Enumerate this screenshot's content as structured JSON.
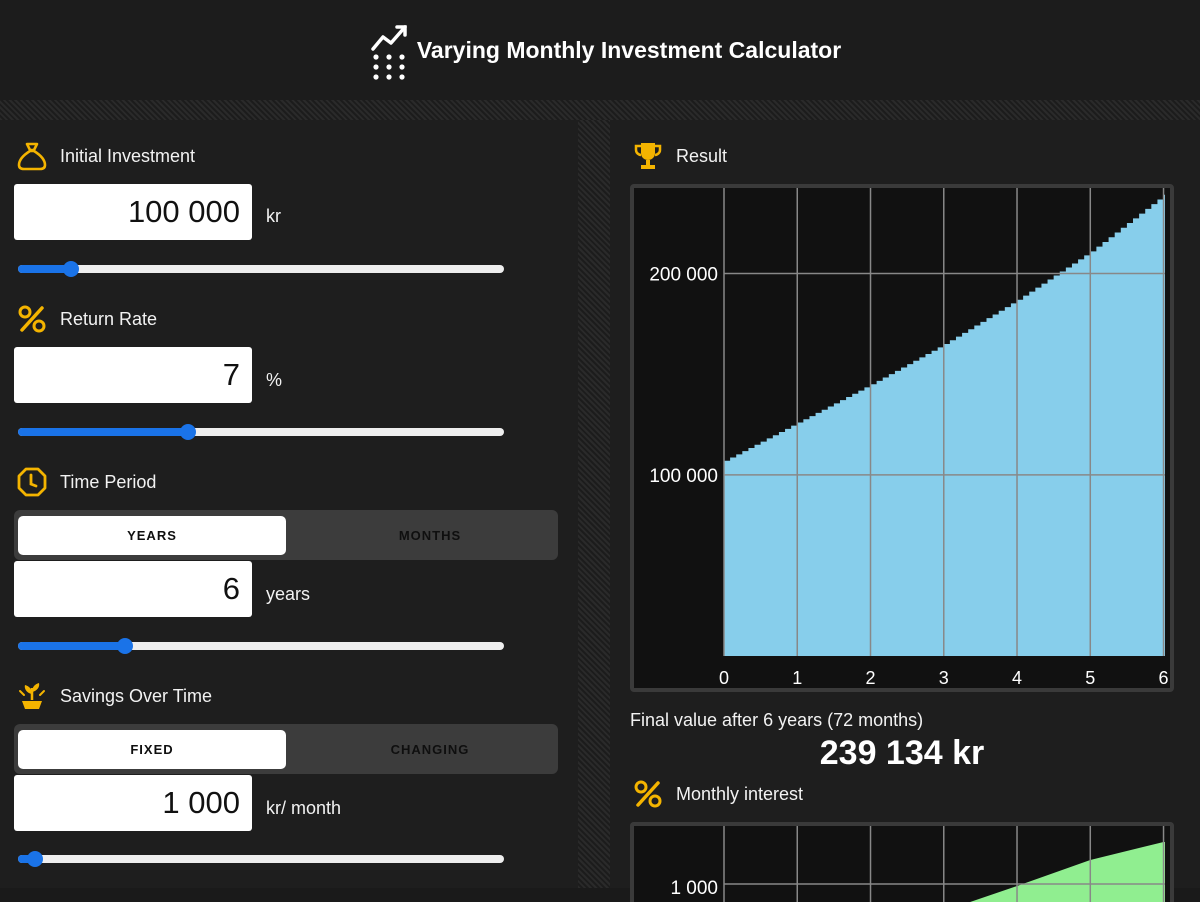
{
  "header": {
    "title": "Varying Monthly Investment Calculator",
    "logo_icon": "chart-dots-logo-icon"
  },
  "accent_color": "#f4b400",
  "slider_color": "#1a73e8",
  "initial_investment": {
    "label": "Initial Investment",
    "value": "100 000",
    "unit": "kr",
    "slider_level": 0.11,
    "icon": "money-bag-icon"
  },
  "return_rate": {
    "label": "Return Rate",
    "value": "7",
    "unit": "%",
    "slider_level": 0.35,
    "icon": "percent-icon"
  },
  "time_period": {
    "label": "Time Period",
    "icon": "clock-icon",
    "toggle": {
      "selected": "YEARS",
      "options": [
        "YEARS",
        "MONTHS"
      ]
    },
    "value": "6",
    "unit": "years",
    "slider_level": 0.22
  },
  "savings": {
    "label": "Savings Over Time",
    "icon": "plant-icon",
    "toggle": {
      "selected": "FIXED",
      "options": [
        "FIXED",
        "CHANGING"
      ]
    },
    "value": "1 000",
    "unit": "kr/ month",
    "slider_level": 0.035
  },
  "result": {
    "label": "Result",
    "icon": "trophy-icon",
    "final_text": "Final value after 6 years (72 months)",
    "final_amount": "239 134 kr"
  },
  "monthly_interest": {
    "label": "Monthly interest",
    "icon": "percent-icon"
  },
  "chart_data": [
    {
      "type": "area",
      "title": "",
      "xlabel": "",
      "ylabel": "",
      "x_ticks": [
        "0",
        "1",
        "2",
        "3",
        "4",
        "5",
        "6"
      ],
      "y_ticks": [
        "100 000",
        "200 000"
      ],
      "y_tick_values": [
        100000,
        200000
      ],
      "xlim": [
        0,
        6.02
      ],
      "ylim": [
        10000,
        240000
      ],
      "grid": true,
      "color": "#87ceeb",
      "series": [
        {
          "x": [
            0,
            1,
            2,
            3,
            4,
            5,
            6
          ],
          "values": [
            107000,
            126000,
            145000,
            165000,
            187000,
            211000,
            239134
          ]
        }
      ]
    },
    {
      "type": "area",
      "title": "",
      "y_ticks": [
        "1 000"
      ],
      "x_ticks_count": 7,
      "color": "#90ee90",
      "series": [
        {
          "x": [
            3.2,
            4,
            5,
            6
          ],
          "values": [
            1000,
            1100,
            1230,
            1320
          ]
        }
      ]
    }
  ]
}
